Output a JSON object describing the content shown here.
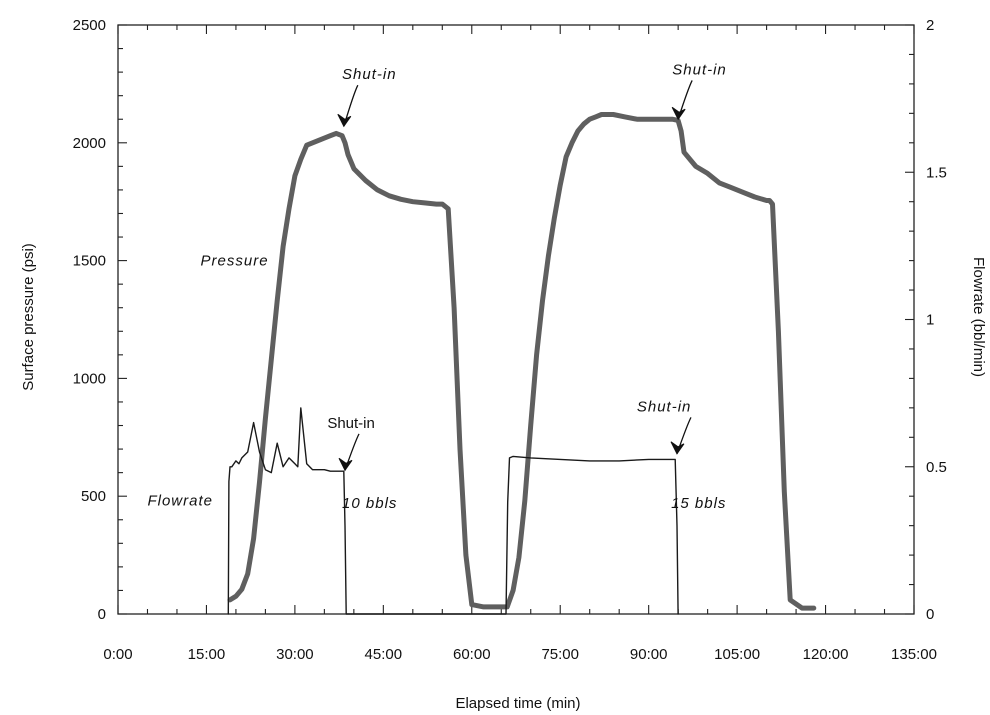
{
  "chart_data": {
    "type": "line",
    "title": "",
    "xlabel": "Elapsed time (min)",
    "ylabel": "Surface pressure (psi)",
    "y2label": "Flowrate (bbl/min)",
    "xlim": [
      0,
      135
    ],
    "ylim": [
      0,
      2500
    ],
    "y2lim": [
      0,
      2
    ],
    "x_tick_labels": [
      "0:00",
      "15:00",
      "30:00",
      "45:00",
      "60:00",
      "75:00",
      "90:00",
      "105:00",
      "120:00",
      "135:00"
    ],
    "y_tick_labels": [
      "0",
      "500",
      "1000",
      "1500",
      "2000",
      "2500"
    ],
    "y2_tick_labels": [
      "0",
      "0.5",
      "1",
      "1.5",
      "2"
    ],
    "grid": false,
    "legend": "none",
    "series": [
      {
        "key": "pressure",
        "axis": "left",
        "color": "#5f5f5f",
        "x": [
          19,
          20,
          21,
          22,
          23,
          24,
          25,
          26,
          27,
          28,
          29,
          30,
          31,
          32,
          33,
          34,
          35,
          36,
          37,
          38,
          38.5,
          39,
          40,
          42,
          44,
          46,
          48,
          50,
          52,
          54,
          55,
          56,
          57,
          58,
          59,
          60,
          62,
          64,
          66,
          67,
          68,
          69,
          70,
          71,
          72,
          73,
          74,
          75,
          76,
          77,
          78,
          79,
          80,
          81,
          82,
          84,
          86,
          88,
          90,
          92,
          94,
          95,
          95.5,
          96,
          98,
          100,
          102,
          104,
          106,
          108,
          110,
          110.5,
          111,
          112,
          113,
          114,
          116,
          118
        ],
        "y": [
          60,
          75,
          105,
          170,
          320,
          560,
          830,
          1080,
          1330,
          1560,
          1720,
          1860,
          1930,
          1990,
          2000,
          2010,
          2020,
          2030,
          2040,
          2030,
          2000,
          1950,
          1890,
          1840,
          1800,
          1775,
          1760,
          1750,
          1745,
          1740,
          1740,
          1720,
          1300,
          700,
          250,
          40,
          30,
          30,
          30,
          100,
          240,
          480,
          800,
          1100,
          1330,
          1520,
          1680,
          1820,
          1940,
          2000,
          2050,
          2080,
          2100,
          2110,
          2120,
          2120,
          2110,
          2100,
          2100,
          2100,
          2100,
          2095,
          2050,
          1960,
          1900,
          1870,
          1830,
          1810,
          1790,
          1770,
          1755,
          1755,
          1740,
          1200,
          520,
          60,
          25,
          25
        ]
      },
      {
        "key": "flowrate",
        "axis": "right",
        "color": "#1a1a1a",
        "x": [
          18.7,
          18.8,
          19,
          19.3,
          20,
          20.5,
          21,
          22,
          23,
          24,
          25,
          26,
          27,
          28,
          29,
          30,
          30.5,
          31,
          32,
          33,
          34,
          35,
          36,
          37,
          38,
          38.3,
          38.5,
          38.7,
          65.8,
          66.1,
          66.4,
          67,
          70,
          75,
          80,
          85,
          90,
          94.5,
          94.8,
          95
        ],
        "y": [
          0,
          0.45,
          0.5,
          0.5,
          0.52,
          0.51,
          0.53,
          0.55,
          0.65,
          0.55,
          0.49,
          0.48,
          0.58,
          0.5,
          0.53,
          0.51,
          0.5,
          0.7,
          0.51,
          0.49,
          0.49,
          0.49,
          0.485,
          0.485,
          0.485,
          0.485,
          0.3,
          0,
          0,
          0.38,
          0.53,
          0.535,
          0.53,
          0.525,
          0.52,
          0.52,
          0.525,
          0.525,
          0.3,
          0
        ]
      }
    ],
    "annotations": [
      {
        "key": "a1",
        "text": "Pressure",
        "x": 14,
        "y": 1480
      },
      {
        "key": "a2",
        "text": "Shut-in",
        "x": 38,
        "y": 2270,
        "arrow_to": [
          38.3,
          2070
        ]
      },
      {
        "key": "a3",
        "text": "Shut-in",
        "x": 94,
        "y": 2290,
        "arrow_to": [
          95,
          2100
        ]
      },
      {
        "key": "a4",
        "text": "Flowrate",
        "x": 5,
        "y": 460
      },
      {
        "key": "a5",
        "text": "Shut-in",
        "x": 35.5,
        "y": 790,
        "arrow_to": [
          38.5,
          610
        ]
      },
      {
        "key": "a6",
        "text": "10 bbls",
        "x": 38,
        "y": 450
      },
      {
        "key": "a7",
        "text": "Shut-in",
        "x": 88,
        "y": 860,
        "arrow_to": [
          94.8,
          680
        ]
      },
      {
        "key": "a8",
        "text": "15 bbls",
        "x": 93.8,
        "y": 450
      }
    ]
  }
}
